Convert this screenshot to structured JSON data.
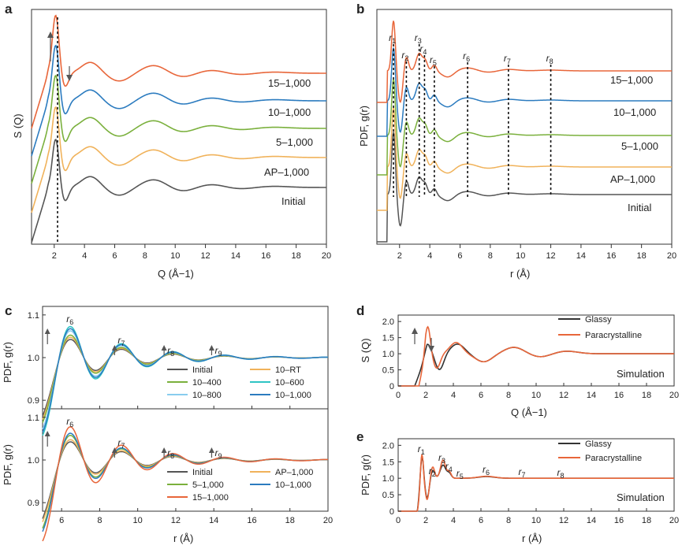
{
  "panels": [
    {
      "id": "a",
      "label": "a",
      "xlabel": "Q (Å−1)",
      "ylabel": "S (Q)",
      "xticks": [
        "2",
        "4",
        "6",
        "8",
        "10",
        "12",
        "14",
        "16",
        "18",
        "20"
      ],
      "curve_labels": [
        "15–1,000",
        "10–1,000",
        "5–1,000",
        "AP–1,000",
        "Initial"
      ]
    },
    {
      "id": "b",
      "label": "b",
      "xlabel": "r (Å)",
      "ylabel": "PDF, g(r)",
      "xticks": [
        "2",
        "4",
        "6",
        "8",
        "10",
        "12",
        "14",
        "16",
        "18",
        "20"
      ],
      "curve_labels": [
        "15–1,000",
        "10–1,000",
        "5–1,000",
        "AP–1,000",
        "Initial"
      ],
      "peak_labels": [
        "r",
        "r",
        "r",
        "r",
        "r",
        "r",
        "r",
        "r"
      ],
      "peak_subs": [
        "1",
        "2",
        "3",
        "4",
        "5",
        "6",
        "7",
        "8"
      ]
    },
    {
      "id": "c",
      "label": "c",
      "xlabel": "r (Å)",
      "ylabel": "PDF, g(r)",
      "xticks": [
        "6",
        "8",
        "10",
        "12",
        "14",
        "16",
        "18",
        "20"
      ],
      "yticks": [
        "0.9",
        "1.0",
        "1.1"
      ],
      "peak_labels": [
        "r",
        "r",
        "r",
        "r"
      ],
      "peak_subs": [
        "6",
        "7",
        "8",
        "9"
      ],
      "legend_top": [
        "Initial",
        "10–RT",
        "10–400",
        "10–600",
        "10–800",
        "10–1,000"
      ],
      "legend_bottom": [
        "Initial",
        "AP–1,000",
        "5–1,000",
        "10–1,000",
        "15–1,000"
      ]
    },
    {
      "id": "d",
      "label": "d",
      "xlabel": "Q (Å−1)",
      "ylabel": "S (Q)",
      "xticks": [
        "0",
        "2",
        "4",
        "6",
        "8",
        "10",
        "12",
        "14",
        "16",
        "18",
        "20"
      ],
      "yticks": [
        "0",
        "0.5",
        "1.0",
        "1.5",
        "2.0"
      ],
      "legend": [
        "Glassy",
        "Paracrystalline"
      ],
      "note": "Simulation"
    },
    {
      "id": "e",
      "label": "e",
      "xlabel": "r (Å)",
      "ylabel": "PDF, g(r)",
      "xticks": [
        "0",
        "2",
        "4",
        "6",
        "8",
        "10",
        "12",
        "14",
        "16",
        "18",
        "20"
      ],
      "yticks": [
        "0",
        "0.5",
        "1.0",
        "1.5",
        "2.0"
      ],
      "legend": [
        "Glassy",
        "Paracrystalline"
      ],
      "note": "Simulation",
      "peak_labels": [
        "r",
        "r",
        "r",
        "r",
        "r",
        "r",
        "r",
        "r"
      ],
      "peak_subs": [
        "1",
        "2",
        "3",
        "4",
        "5",
        "6",
        "7",
        "8"
      ]
    }
  ],
  "colors": {
    "initial": "#555555",
    "ap": "#f0b25a",
    "s5": "#7ab03c",
    "s10": "#2b7bbf",
    "s15": "#e8663a",
    "rt": "#f0b25a",
    "t400": "#7ab03c",
    "t600": "#2ec4c4",
    "t800": "#88ccee",
    "t1000": "#2b7bbf",
    "glassy": "#333333",
    "para": "#e8663a"
  },
  "chart_data": [
    {
      "panel": "a",
      "type": "line",
      "xlim": [
        0.5,
        20
      ],
      "x_units": "Å^-1",
      "title": "",
      "xlabel": "Q (Å−1)",
      "ylabel": "S (Q)",
      "series": [
        {
          "name": "Initial",
          "offset": 0.0
        },
        {
          "name": "AP–1,000",
          "offset": 1.0
        },
        {
          "name": "5–1,000",
          "offset": 2.0
        },
        {
          "name": "10–1,000",
          "offset": 3.0
        },
        {
          "name": "15–1,000",
          "offset": 4.0
        }
      ],
      "features": {
        "main_peak_Q": 2.1,
        "secondary_peaks_Q": [
          4.4,
          8.7,
          12.3
        ],
        "dashed_line_Q": 2.1
      }
    },
    {
      "panel": "b",
      "type": "line",
      "xlim": [
        0.5,
        20
      ],
      "x_units": "Å",
      "title": "",
      "xlabel": "r (Å)",
      "ylabel": "PDF, g(r)",
      "series": [
        {
          "name": "Initial",
          "offset": 0.0
        },
        {
          "name": "AP–1,000",
          "offset": 1.0
        },
        {
          "name": "5–1,000",
          "offset": 2.0
        },
        {
          "name": "10–1,000",
          "offset": 3.0
        },
        {
          "name": "15–1,000",
          "offset": 4.0
        }
      ],
      "peak_positions_r": {
        "r1": 1.6,
        "r2": 2.45,
        "r3": 3.3,
        "r4": 3.65,
        "r5": 4.3,
        "r6": 6.5,
        "r7": 9.2,
        "r8": 12.0
      }
    },
    {
      "panel": "c-top",
      "type": "line",
      "xlim": [
        5,
        20
      ],
      "ylim": [
        0.88,
        1.12
      ],
      "xlabel": "r (Å)",
      "ylabel": "PDF, g(r)",
      "series": [
        {
          "name": "Initial",
          "r6_peak": 1.045
        },
        {
          "name": "10–RT",
          "r6_peak": 1.05
        },
        {
          "name": "10–400",
          "r6_peak": 1.055
        },
        {
          "name": "10–600",
          "r6_peak": 1.075
        },
        {
          "name": "10–800",
          "r6_peak": 1.065
        },
        {
          "name": "10–1,000",
          "r6_peak": 1.07
        }
      ],
      "peak_positions_r": {
        "r6": 6.5,
        "r7": 9.2,
        "r8": 11.8,
        "r9": 14.3
      }
    },
    {
      "panel": "c-bottom",
      "type": "line",
      "xlim": [
        5,
        20
      ],
      "ylim": [
        0.88,
        1.12
      ],
      "xlabel": "r (Å)",
      "ylabel": "PDF, g(r)",
      "series": [
        {
          "name": "Initial",
          "r6_peak": 1.045
        },
        {
          "name": "AP–1,000",
          "r6_peak": 1.05
        },
        {
          "name": "5–1,000",
          "r6_peak": 1.06
        },
        {
          "name": "10–1,000",
          "r6_peak": 1.065
        },
        {
          "name": "15–1,000",
          "r6_peak": 1.08
        }
      ],
      "peak_positions_r": {
        "r6": 6.5,
        "r7": 9.2,
        "r8": 11.8,
        "r9": 14.3
      }
    },
    {
      "panel": "d",
      "type": "line",
      "xlim": [
        0,
        20
      ],
      "ylim": [
        0,
        2.2
      ],
      "xlabel": "Q (Å−1)",
      "ylabel": "S (Q)",
      "series": [
        {
          "name": "Glassy",
          "main_peak": [
            2.15,
            1.3
          ]
        },
        {
          "name": "Paracrystalline",
          "main_peak": [
            2.15,
            1.85
          ]
        }
      ]
    },
    {
      "panel": "e",
      "type": "line",
      "xlim": [
        0,
        20
      ],
      "ylim": [
        0,
        2.2
      ],
      "xlabel": "r (Å)",
      "ylabel": "PDF, g(r)",
      "series": [
        {
          "name": "Glassy",
          "r1_peak": [
            1.7,
            1.85
          ]
        },
        {
          "name": "Paracrystalline",
          "r1_peak": [
            1.7,
            1.95
          ]
        }
      ],
      "peak_positions_r": {
        "r1": 1.7,
        "r2": 2.5,
        "r3": 3.2,
        "r4": 3.7,
        "r5": 4.5,
        "r6": 6.4,
        "r7": 9.0,
        "r8": 11.8
      }
    }
  ]
}
